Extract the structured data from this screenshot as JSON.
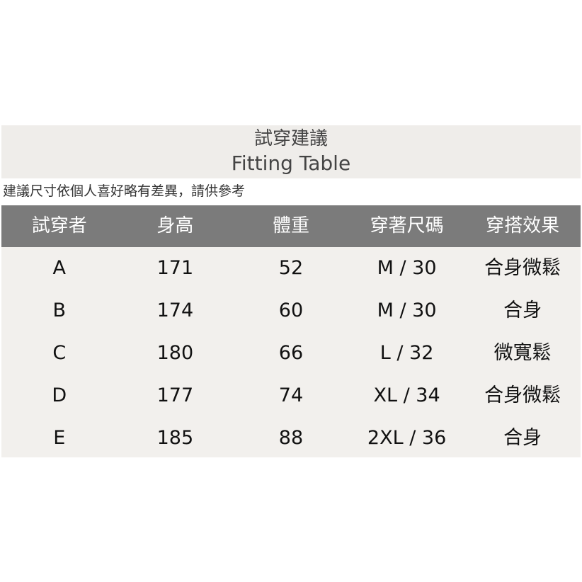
{
  "title": {
    "zh": "試穿建議",
    "en": "Fitting Table"
  },
  "note": "建議尺寸依個人喜好略有差異，請供參考",
  "table": {
    "headers": [
      "試穿者",
      "身高",
      "體重",
      "穿著尺碼",
      "穿搭效果"
    ],
    "rows": [
      [
        "A",
        "171",
        "52",
        "M / 30",
        "合身微鬆"
      ],
      [
        "B",
        "174",
        "60",
        "M / 30",
        "合身"
      ],
      [
        "C",
        "180",
        "66",
        "L / 32",
        "微寬鬆"
      ],
      [
        "D",
        "177",
        "74",
        "XL / 34",
        "合身微鬆"
      ],
      [
        "E",
        "185",
        "88",
        "2XL / 36",
        "合身"
      ]
    ]
  },
  "colors": {
    "header_bg": "#7b7b7b",
    "body_bg": "#f2f0ed",
    "title_bg": "#efedea"
  }
}
